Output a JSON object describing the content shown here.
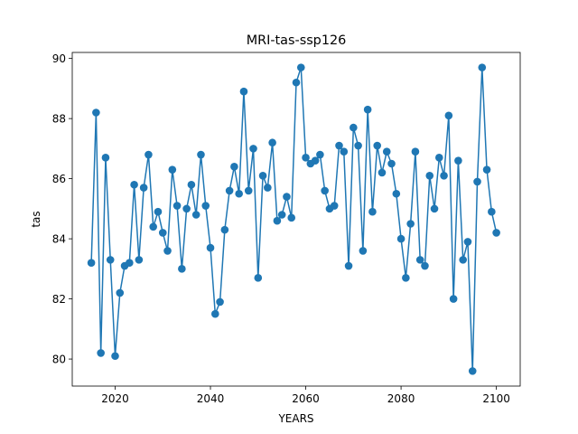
{
  "chart_data": {
    "type": "line",
    "title": "MRI-tas-ssp126",
    "xlabel": "YEARS",
    "ylabel": "tas",
    "xlim": [
      2011,
      2105
    ],
    "ylim": [
      79.1,
      90.2
    ],
    "x_ticks": [
      2020,
      2040,
      2060,
      2080,
      2100
    ],
    "y_ticks": [
      80,
      82,
      84,
      86,
      88,
      90
    ],
    "grid": false,
    "legend": "none",
    "series": [
      {
        "color": "#1f77b4",
        "marker": "circle",
        "x": [
          2015,
          2016,
          2017,
          2018,
          2019,
          2020,
          2021,
          2022,
          2023,
          2024,
          2025,
          2026,
          2027,
          2028,
          2029,
          2030,
          2031,
          2032,
          2033,
          2034,
          2035,
          2036,
          2037,
          2038,
          2039,
          2040,
          2041,
          2042,
          2043,
          2044,
          2045,
          2046,
          2047,
          2048,
          2049,
          2050,
          2051,
          2052,
          2053,
          2054,
          2055,
          2056,
          2057,
          2058,
          2059,
          2060,
          2061,
          2062,
          2063,
          2064,
          2065,
          2066,
          2067,
          2068,
          2069,
          2070,
          2071,
          2072,
          2073,
          2074,
          2075,
          2076,
          2077,
          2078,
          2079,
          2080,
          2081,
          2082,
          2083,
          2084,
          2085,
          2086,
          2087,
          2088,
          2089,
          2090,
          2091,
          2092,
          2093,
          2094,
          2095,
          2096,
          2097,
          2098,
          2099,
          2100
        ],
        "y": [
          83.2,
          88.2,
          80.2,
          86.7,
          83.3,
          80.1,
          82.2,
          83.1,
          83.2,
          85.8,
          83.3,
          85.7,
          86.8,
          84.4,
          84.9,
          84.2,
          83.6,
          86.3,
          85.1,
          83.0,
          85.0,
          85.8,
          84.8,
          86.8,
          85.1,
          83.7,
          81.5,
          81.9,
          84.3,
          85.6,
          86.4,
          85.5,
          88.9,
          85.6,
          87.0,
          82.7,
          86.1,
          85.7,
          87.2,
          84.6,
          84.8,
          85.4,
          84.7,
          89.2,
          89.7,
          86.7,
          86.5,
          86.6,
          86.8,
          85.6,
          85.0,
          85.1,
          87.1,
          86.9,
          83.1,
          87.7,
          87.1,
          83.6,
          88.3,
          84.9,
          87.1,
          86.2,
          86.9,
          86.5,
          85.5,
          84.0,
          82.7,
          84.5,
          86.9,
          83.3,
          83.1,
          86.1,
          85.0,
          86.7,
          86.1,
          88.1,
          82.0,
          86.6,
          83.3,
          83.9,
          79.6,
          85.9,
          89.7,
          86.3,
          84.9,
          84.2
        ]
      }
    ]
  }
}
